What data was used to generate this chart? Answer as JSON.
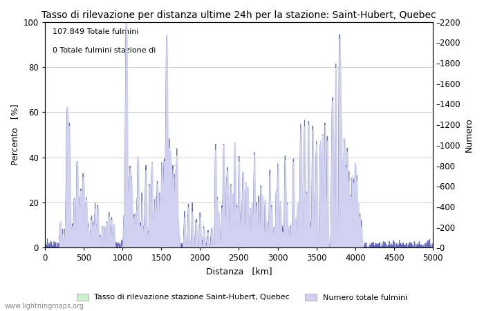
{
  "title": "Tasso di rilevazione per distanza ultime 24h per la stazione: Saint-Hubert, Quebec",
  "xlabel": "Distanza   [km]",
  "ylabel_left": "Percento   [%]",
  "ylabel_right": "Numero",
  "annotation_line1": "107.849 Totale fulmini",
  "annotation_line2": "0 Totale fulmini stazione di",
  "legend_label1": "Tasso di rilevazione stazione Saint-Hubert, Quebec",
  "legend_label2": "Numero totale fulmini",
  "watermark": "www.lightningmaps.org",
  "xlim": [
    0,
    5000
  ],
  "ylim_left": [
    0,
    100
  ],
  "ylim_right": [
    0,
    2200
  ],
  "xticks": [
    0,
    500,
    1000,
    1500,
    2000,
    2500,
    3000,
    3500,
    4000,
    4500,
    5000
  ],
  "yticks_left": [
    0,
    20,
    40,
    60,
    80,
    100
  ],
  "yticks_right": [
    0,
    200,
    400,
    600,
    800,
    1000,
    1200,
    1400,
    1600,
    1800,
    2000,
    2200
  ],
  "bg_color": "#ffffff",
  "fill_color_detection": "#d0f0d0",
  "fill_color_total": "#d0d0f0",
  "line_color": "#6666bb",
  "line_width": 0.7,
  "title_fontsize": 10,
  "axis_fontsize": 9,
  "tick_fontsize": 8.5
}
